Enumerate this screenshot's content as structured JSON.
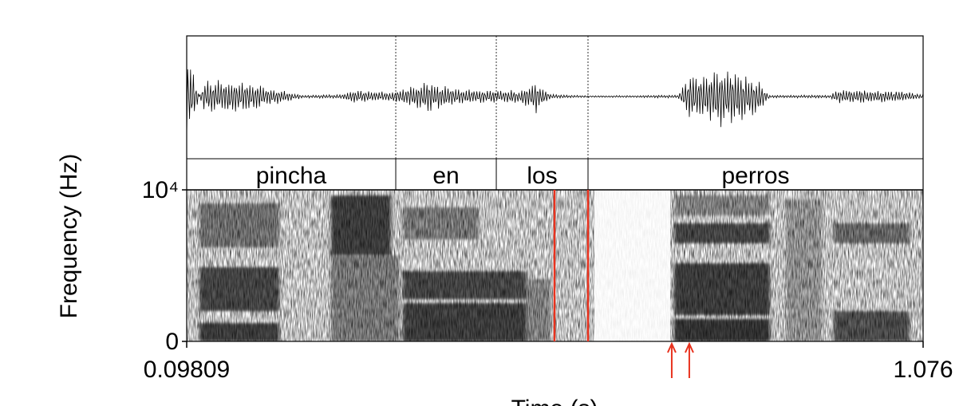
{
  "chart_data": {
    "type": "spectrogram",
    "xlabel": "Time (s)",
    "ylabel": "Frequency (Hz)",
    "xlim": [
      0.09809,
      1.076
    ],
    "xticks": [
      0.09809,
      1.076
    ],
    "ylim": [
      0,
      10000
    ],
    "yticks": [
      0,
      {
        "value": 10000,
        "label": "10⁴"
      }
    ],
    "tier": {
      "labels": [
        "pincha",
        "en",
        "los",
        "perros"
      ],
      "boundaries": [
        0.3757,
        0.5092,
        0.631
      ]
    },
    "markers": {
      "color": "#e8321e",
      "lines": [
        0.5865,
        0.631
      ],
      "arrows": [
        0.7422,
        0.7655
      ]
    }
  }
}
